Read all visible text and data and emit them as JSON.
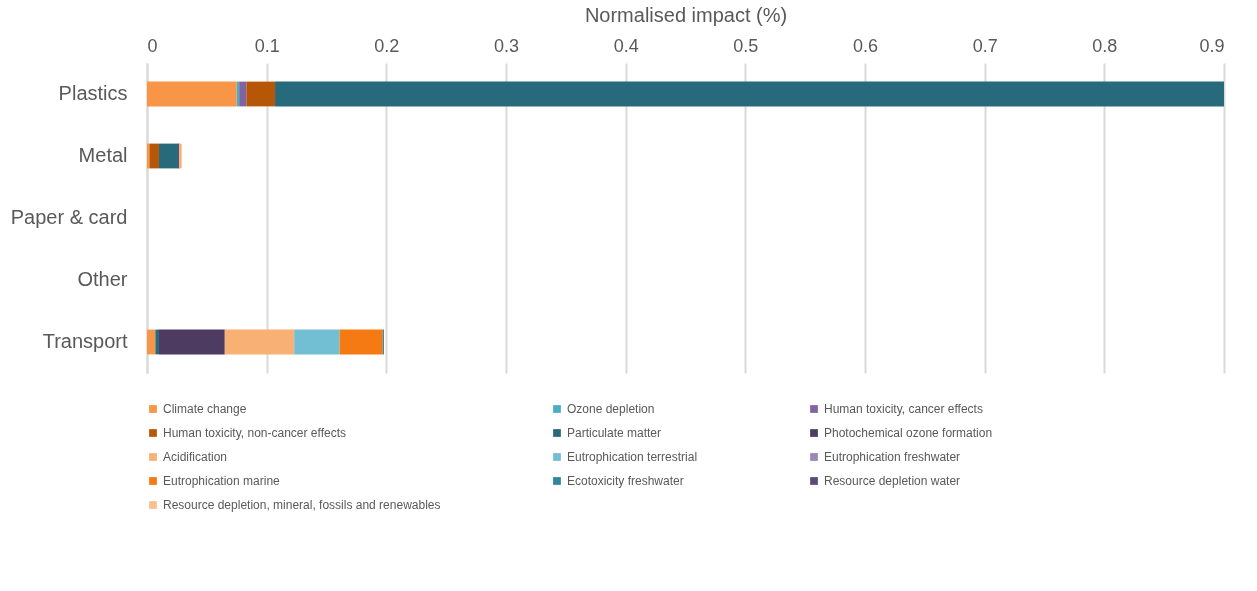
{
  "chart_data": {
    "type": "bar",
    "orientation": "horizontal",
    "stacked": true,
    "xlabel": "Normalised impact (%)",
    "categories": [
      "Plastics",
      "Metal",
      "Paper & card",
      "Other",
      "Transport"
    ],
    "xlim": [
      0,
      0.9
    ],
    "xticks": [
      0,
      0.1,
      0.2,
      0.3,
      0.4,
      0.5,
      0.6,
      0.7,
      0.8,
      0.9
    ],
    "grid": "x",
    "legend": "bottom",
    "series": [
      {
        "name": "Climate change",
        "color": "#f79646",
        "values": [
          0.075,
          0.002,
          0,
          0,
          0.007
        ]
      },
      {
        "name": "Ozone depletion",
        "color": "#4bacc6",
        "values": [
          0.002,
          0,
          0,
          0,
          0
        ]
      },
      {
        "name": "Human toxicity, cancer effects",
        "color": "#8064a2",
        "values": [
          0.006,
          0,
          0,
          0,
          0
        ]
      },
      {
        "name": "Human toxicity, non-cancer effects",
        "color": "#b65708",
        "values": [
          0.024,
          0.008,
          0,
          0,
          0
        ]
      },
      {
        "name": "Particulate matter",
        "color": "#276a7c",
        "values": [
          0.793,
          0.016,
          0,
          0,
          0.003
        ]
      },
      {
        "name": "Photochemical ozone formation",
        "color": "#4e3b62",
        "values": [
          0,
          0.001,
          0,
          0,
          0.055
        ]
      },
      {
        "name": "Acidification",
        "color": "#f9b074",
        "values": [
          0,
          0.002,
          0,
          0,
          0.058
        ]
      },
      {
        "name": "Eutrophication terrestrial",
        "color": "#72bfd3",
        "values": [
          0,
          0,
          0,
          0,
          0.038
        ]
      },
      {
        "name": "Eutrophication freshwater",
        "color": "#9c87b8",
        "values": [
          0,
          0,
          0,
          0,
          0
        ]
      },
      {
        "name": "Eutrophication marine",
        "color": "#f67a13",
        "values": [
          0,
          0,
          0,
          0,
          0.036
        ]
      },
      {
        "name": "Ecotoxicity freshwater",
        "color": "#31859c",
        "values": [
          0,
          0,
          0,
          0,
          0.001
        ]
      },
      {
        "name": "Resource depletion water",
        "color": "#5f497a",
        "values": [
          0,
          0,
          0,
          0,
          0
        ]
      },
      {
        "name": "Resource depletion, mineral, fossils and renewables",
        "color": "#fac090",
        "values": [
          0,
          0,
          0,
          0,
          0
        ]
      }
    ]
  }
}
